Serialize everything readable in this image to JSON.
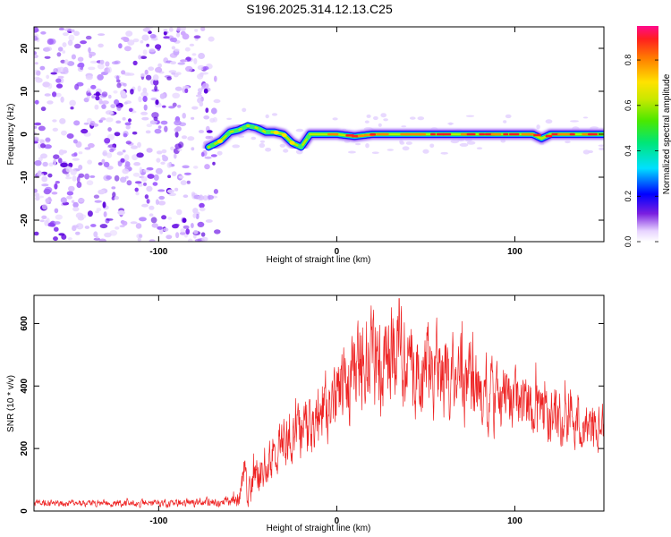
{
  "title": "S196.2025.314.12.13.C25",
  "colorbar": {
    "label": "Normalized spectral amplitude",
    "ticks": [
      "0.0",
      "0.2",
      "0.4",
      "0.6",
      "0.8"
    ],
    "tick_values": [
      0.0,
      0.2,
      0.4,
      0.6,
      0.8
    ],
    "range": [
      0,
      0.95
    ]
  },
  "chart_data": [
    {
      "type": "heatmap",
      "name": "spectrogram",
      "xlabel": "Height of straight line (km)",
      "ylabel": "Frequency (Hz)",
      "xlim": [
        -170,
        150
      ],
      "ylim": [
        -25,
        25
      ],
      "xticks": [
        -100,
        0,
        100
      ],
      "xtick_labels": [
        "-100",
        "0",
        "100"
      ],
      "yticks": [
        -20,
        -10,
        0,
        10,
        20
      ],
      "ytick_labels": [
        "-20",
        "-10",
        "0",
        "10",
        "20"
      ],
      "noise_region_x": [
        -170,
        -70
      ],
      "signal_ridge": {
        "x": [
          -72,
          -65,
          -60,
          -55,
          -50,
          -45,
          -40,
          -35,
          -30,
          -25,
          -20,
          -15,
          -10,
          0,
          10,
          20,
          30,
          50,
          80,
          110,
          115,
          120,
          150
        ],
        "y": [
          -3,
          -1.5,
          0.5,
          1,
          2,
          1.5,
          0.5,
          0.5,
          0,
          -2,
          -3,
          0,
          0,
          0,
          -0.5,
          0,
          0,
          0,
          0,
          0,
          -1,
          0,
          0
        ]
      },
      "peak_amplitude": 0.95
    },
    {
      "type": "line",
      "name": "snr",
      "xlabel": "Height of straight line (km)",
      "ylabel": "SNR (10 * v/v)",
      "xlim": [
        -170,
        150
      ],
      "ylim": [
        0,
        690
      ],
      "xticks": [
        -100,
        0,
        100
      ],
      "xtick_labels": [
        "-100",
        "0",
        "100"
      ],
      "yticks": [
        0,
        200,
        400,
        600
      ],
      "ytick_labels": [
        "0",
        "200",
        "400",
        "600"
      ],
      "color": "#ee2222",
      "envelope": {
        "x": [
          -170,
          -100,
          -60,
          -55,
          -52,
          -50,
          -45,
          -40,
          -30,
          -20,
          -10,
          0,
          10,
          20,
          30,
          35,
          40,
          50,
          60,
          70,
          80,
          100,
          120,
          140,
          150
        ],
        "mean": [
          25,
          25,
          30,
          40,
          120,
          60,
          110,
          160,
          220,
          260,
          300,
          360,
          430,
          460,
          500,
          510,
          470,
          450,
          430,
          410,
          390,
          340,
          300,
          280,
          270
        ],
        "amplitude": [
          10,
          12,
          15,
          30,
          60,
          45,
          60,
          70,
          80,
          90,
          110,
          130,
          150,
          160,
          160,
          160,
          150,
          140,
          130,
          130,
          120,
          100,
          90,
          80,
          80
        ]
      },
      "peak": {
        "x": 35,
        "y": 680
      },
      "n_samples": 1600
    }
  ]
}
